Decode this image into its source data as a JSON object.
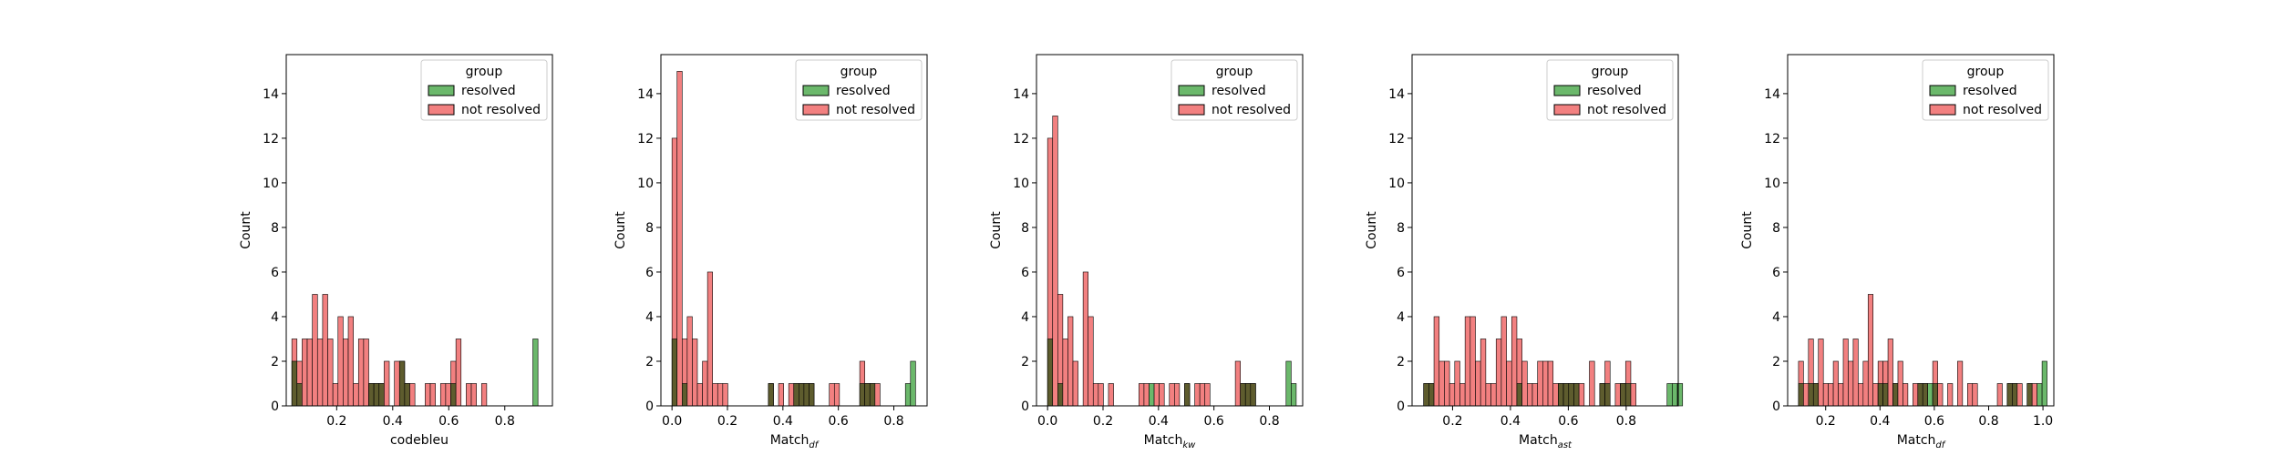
{
  "colors": {
    "resolved_fill": "#6bb86b",
    "not_resolved_fill": "#f28080",
    "overlap_fill": "#5e5c2e",
    "bar_edge": "#000000"
  },
  "chart_data": [
    {
      "type": "bar",
      "subtype": "overlapping histogram",
      "xlabel": "codebleu",
      "ylabel": "Count",
      "xlim": [
        0.02,
        0.97
      ],
      "ylim": [
        0,
        15.75
      ],
      "xticks": [
        {
          "value": 0.2,
          "label": "0.2"
        },
        {
          "value": 0.4,
          "label": "0.4"
        },
        {
          "value": 0.6,
          "label": "0.6"
        },
        {
          "value": 0.8,
          "label": "0.8"
        }
      ],
      "yticks": [
        0,
        2,
        4,
        6,
        8,
        10,
        12,
        14
      ],
      "legend": {
        "title": "group",
        "position": "top-right",
        "entries": [
          "resolved",
          "not resolved"
        ]
      },
      "bin_start": 0.04,
      "bin_width": 0.0183,
      "series": [
        {
          "name": "resolved",
          "color": "#6bb86b",
          "values": [
            2,
            1,
            0,
            0,
            0,
            0,
            0,
            0,
            0,
            0,
            0,
            0,
            0,
            0,
            0,
            1,
            1,
            1,
            0,
            0,
            0,
            2,
            1,
            0,
            0,
            0,
            0,
            0,
            0,
            0,
            0,
            1,
            0,
            0,
            0,
            0,
            0,
            0,
            0,
            0,
            0,
            0,
            0,
            0,
            0,
            0,
            0,
            3
          ]
        },
        {
          "name": "not resolved",
          "color": "#f28080",
          "values": [
            3,
            2,
            3,
            3,
            5,
            3,
            5,
            3,
            1,
            4,
            3,
            4,
            1,
            3,
            3,
            1,
            1,
            1,
            2,
            0,
            2,
            2,
            1,
            1,
            0,
            0,
            1,
            1,
            0,
            1,
            1,
            2,
            3,
            0,
            1,
            1,
            0,
            1,
            0,
            0,
            0,
            0,
            0,
            0,
            0,
            0,
            0,
            0
          ]
        }
      ]
    },
    {
      "type": "bar",
      "subtype": "overlapping histogram",
      "xlabel_main": "Match",
      "xlabel_sub": "df",
      "ylabel": "Count",
      "xlim": [
        -0.04,
        0.92
      ],
      "ylim": [
        0,
        15.75
      ],
      "xticks": [
        {
          "value": 0.0,
          "label": "0.0"
        },
        {
          "value": 0.2,
          "label": "0.2"
        },
        {
          "value": 0.4,
          "label": "0.4"
        },
        {
          "value": 0.6,
          "label": "0.6"
        },
        {
          "value": 0.8,
          "label": "0.8"
        }
      ],
      "yticks": [
        0,
        2,
        4,
        6,
        8,
        10,
        12,
        14
      ],
      "legend": {
        "title": "group",
        "position": "top-right",
        "entries": [
          "resolved",
          "not resolved"
        ]
      },
      "bin_start": 0.0,
      "bin_width": 0.0183,
      "series": [
        {
          "name": "resolved",
          "color": "#6bb86b",
          "values": [
            3,
            0,
            1,
            0,
            0,
            0,
            0,
            0,
            0,
            0,
            0,
            0,
            0,
            0,
            0,
            0,
            0,
            0,
            0,
            1,
            0,
            0,
            0,
            0,
            1,
            1,
            1,
            1,
            0,
            0,
            0,
            0,
            0,
            0,
            0,
            0,
            0,
            1,
            1,
            1,
            0,
            0,
            0,
            0,
            0,
            0,
            1,
            2
          ]
        },
        {
          "name": "not resolved",
          "color": "#f28080",
          "values": [
            12,
            15,
            3,
            4,
            3,
            1,
            2,
            6,
            1,
            1,
            1,
            0,
            0,
            0,
            0,
            0,
            0,
            0,
            0,
            1,
            0,
            1,
            0,
            1,
            1,
            1,
            1,
            1,
            0,
            0,
            0,
            1,
            1,
            0,
            0,
            0,
            0,
            2,
            1,
            1,
            1,
            0,
            0,
            0,
            0,
            0,
            0,
            0
          ]
        }
      ]
    },
    {
      "type": "bar",
      "subtype": "overlapping histogram",
      "xlabel_main": "Match",
      "xlabel_sub": "kw",
      "ylabel": "Count",
      "xlim": [
        -0.04,
        0.92
      ],
      "ylim": [
        0,
        15.75
      ],
      "xticks": [
        {
          "value": 0.0,
          "label": "0.0"
        },
        {
          "value": 0.2,
          "label": "0.2"
        },
        {
          "value": 0.4,
          "label": "0.4"
        },
        {
          "value": 0.6,
          "label": "0.6"
        },
        {
          "value": 0.8,
          "label": "0.8"
        }
      ],
      "yticks": [
        0,
        2,
        4,
        6,
        8,
        10,
        12,
        14
      ],
      "legend": {
        "title": "group",
        "position": "top-right",
        "entries": [
          "resolved",
          "not resolved"
        ]
      },
      "bin_start": 0.0,
      "bin_width": 0.0183,
      "series": [
        {
          "name": "resolved",
          "color": "#6bb86b",
          "values": [
            3,
            0,
            1,
            0,
            0,
            0,
            0,
            0,
            0,
            0,
            0,
            0,
            0,
            0,
            0,
            0,
            0,
            0,
            0,
            0,
            1,
            0,
            0,
            0,
            0,
            0,
            0,
            1,
            0,
            0,
            0,
            0,
            0,
            0,
            0,
            0,
            0,
            0,
            1,
            1,
            1,
            0,
            0,
            0,
            0,
            0,
            0,
            2,
            1
          ]
        },
        {
          "name": "not resolved",
          "color": "#f28080",
          "values": [
            12,
            13,
            5,
            3,
            4,
            2,
            0,
            6,
            4,
            1,
            1,
            0,
            1,
            0,
            0,
            0,
            0,
            0,
            1,
            1,
            0,
            1,
            1,
            0,
            1,
            1,
            0,
            1,
            0,
            1,
            1,
            1,
            0,
            0,
            0,
            0,
            0,
            2,
            1,
            1,
            1,
            0,
            0,
            0,
            0,
            0,
            0,
            0,
            0
          ]
        }
      ]
    },
    {
      "type": "bar",
      "subtype": "overlapping histogram",
      "xlabel_main": "Match",
      "xlabel_sub": "ast",
      "ylabel": "Count",
      "xlim": [
        0.06,
        0.98
      ],
      "ylim": [
        0,
        15.75
      ],
      "xticks": [
        {
          "value": 0.2,
          "label": "0.2"
        },
        {
          "value": 0.4,
          "label": "0.4"
        },
        {
          "value": 0.6,
          "label": "0.6"
        },
        {
          "value": 0.8,
          "label": "0.8"
        }
      ],
      "yticks": [
        0,
        2,
        4,
        6,
        8,
        10,
        12,
        14
      ],
      "legend": {
        "title": "group",
        "position": "top-right",
        "entries": [
          "resolved",
          "not resolved"
        ]
      },
      "bin_start": 0.1,
      "bin_width": 0.0179,
      "series": [
        {
          "name": "resolved",
          "color": "#6bb86b",
          "values": [
            1,
            1,
            0,
            0,
            0,
            0,
            0,
            0,
            0,
            0,
            0,
            0,
            0,
            0,
            0,
            0,
            0,
            0,
            1,
            0,
            0,
            0,
            0,
            0,
            0,
            0,
            1,
            1,
            1,
            1,
            0,
            0,
            0,
            0,
            1,
            1,
            0,
            0,
            1,
            1,
            0,
            0,
            0,
            0,
            0,
            0,
            0,
            1,
            1,
            1
          ]
        },
        {
          "name": "not resolved",
          "color": "#f28080",
          "values": [
            1,
            1,
            4,
            2,
            2,
            1,
            2,
            1,
            4,
            4,
            2,
            3,
            1,
            1,
            3,
            4,
            2,
            4,
            3,
            2,
            1,
            1,
            2,
            2,
            2,
            1,
            1,
            1,
            1,
            1,
            1,
            0,
            2,
            0,
            1,
            2,
            0,
            1,
            1,
            2,
            1,
            0,
            0,
            0,
            0,
            0,
            0,
            0,
            0,
            0
          ]
        }
      ]
    },
    {
      "type": "bar",
      "subtype": "overlapping histogram",
      "xlabel_main": "Match",
      "xlabel_sub": "df",
      "ylabel": "Count",
      "xlim": [
        0.06,
        1.04
      ],
      "ylim": [
        0,
        15.75
      ],
      "xticks": [
        {
          "value": 0.2,
          "label": "0.2"
        },
        {
          "value": 0.4,
          "label": "0.4"
        },
        {
          "value": 0.6,
          "label": "0.6"
        },
        {
          "value": 0.8,
          "label": "0.8"
        },
        {
          "value": 1.0,
          "label": "1.0"
        }
      ],
      "yticks": [
        0,
        2,
        4,
        6,
        8,
        10,
        12,
        14
      ],
      "legend": {
        "title": "group",
        "position": "top-right",
        "entries": [
          "resolved",
          "not resolved"
        ]
      },
      "bin_start": 0.1,
      "bin_width": 0.0183,
      "series": [
        {
          "name": "resolved",
          "color": "#6bb86b",
          "values": [
            1,
            0,
            1,
            1,
            0,
            0,
            0,
            0,
            0,
            0,
            0,
            0,
            0,
            0,
            0,
            0,
            1,
            1,
            0,
            1,
            0,
            0,
            0,
            0,
            1,
            1,
            1,
            1,
            0,
            0,
            0,
            0,
            0,
            0,
            0,
            0,
            0,
            0,
            0,
            0,
            0,
            0,
            1,
            1,
            0,
            0,
            1,
            0,
            1,
            2
          ]
        },
        {
          "name": "not resolved",
          "color": "#f28080",
          "values": [
            2,
            1,
            3,
            1,
            3,
            1,
            1,
            2,
            1,
            3,
            2,
            3,
            1,
            2,
            5,
            1,
            2,
            2,
            3,
            1,
            2,
            1,
            0,
            1,
            1,
            1,
            0,
            2,
            1,
            0,
            1,
            0,
            2,
            0,
            1,
            1,
            0,
            0,
            0,
            0,
            1,
            0,
            1,
            1,
            1,
            0,
            1,
            1,
            0,
            0
          ]
        }
      ]
    }
  ]
}
